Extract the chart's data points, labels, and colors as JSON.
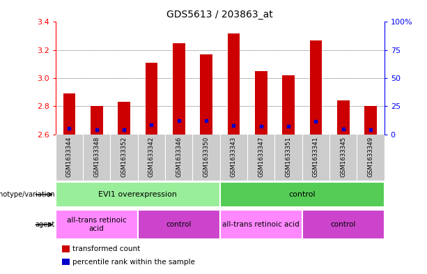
{
  "title": "GDS5613 / 203863_at",
  "samples": [
    "GSM1633344",
    "GSM1633348",
    "GSM1633352",
    "GSM1633342",
    "GSM1633346",
    "GSM1633350",
    "GSM1633343",
    "GSM1633347",
    "GSM1633351",
    "GSM1633341",
    "GSM1633345",
    "GSM1633349"
  ],
  "bar_values": [
    2.89,
    2.8,
    2.83,
    3.11,
    3.25,
    3.17,
    3.32,
    3.05,
    3.02,
    3.27,
    2.84,
    2.8
  ],
  "blue_dot_values": [
    2.645,
    2.635,
    2.635,
    2.665,
    2.695,
    2.695,
    2.66,
    2.655,
    2.655,
    2.69,
    2.64,
    2.635
  ],
  "bar_bottom": 2.6,
  "ylim": [
    2.6,
    3.4
  ],
  "y_ticks": [
    2.6,
    2.8,
    3.0,
    3.2,
    3.4
  ],
  "y2_ticks": [
    0,
    25,
    50,
    75,
    100
  ],
  "y2_labels": [
    "0",
    "25",
    "50",
    "75",
    "100%"
  ],
  "bar_color": "#cc0000",
  "blue_dot_color": "#0000cc",
  "sample_bg": "#cccccc",
  "genotype_groups": [
    {
      "label": "EVI1 overexpression",
      "start": 0,
      "end": 6,
      "color": "#99ee99"
    },
    {
      "label": "control",
      "start": 6,
      "end": 12,
      "color": "#55cc55"
    }
  ],
  "agent_groups": [
    {
      "label": "all-trans retinoic\nacid",
      "start": 0,
      "end": 3,
      "color": "#ff88ff"
    },
    {
      "label": "control",
      "start": 3,
      "end": 6,
      "color": "#cc44cc"
    },
    {
      "label": "all-trans retinoic acid",
      "start": 6,
      "end": 9,
      "color": "#ff88ff"
    },
    {
      "label": "control",
      "start": 9,
      "end": 12,
      "color": "#cc44cc"
    }
  ],
  "legend_items": [
    {
      "color": "#cc0000",
      "label": "transformed count"
    },
    {
      "color": "#0000cc",
      "label": "percentile rank within the sample"
    }
  ]
}
